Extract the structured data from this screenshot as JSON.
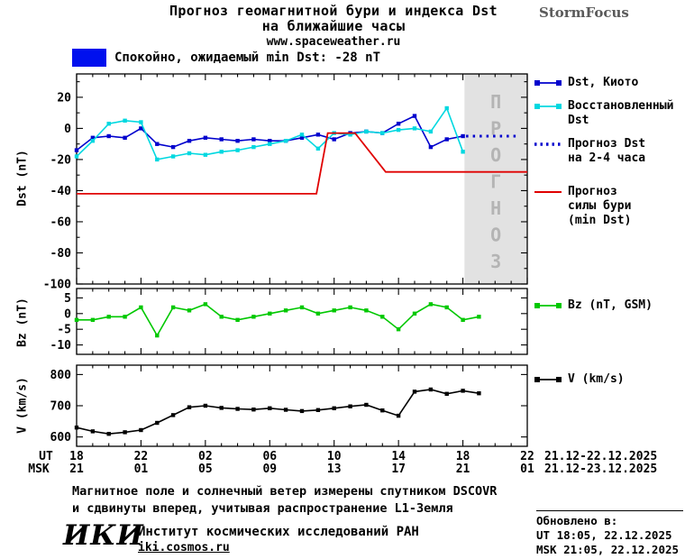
{
  "header": {
    "title_line1": "Прогноз геомагнитной бури и индекса Dst",
    "title_line2": "на ближайшие часы",
    "site": "www.spaceweather.ru",
    "brand": "StormFocus",
    "status": "Спокойно, ожидаемый min Dst: -28 nT"
  },
  "palette": {
    "kyoto": "#0000cd",
    "restored": "#00d8e0",
    "storm": "#e00000",
    "bz": "#00c800",
    "v": "#000000",
    "quiet": "#0010ee",
    "band": "#e2e2e2",
    "band_text": "#b4b4b4"
  },
  "chart_data": {
    "type": "line",
    "x_unit": "hours from 18:00 UT 21.12.2025 to 22:00 UT 22.12.2025, ticks every 4 h",
    "panels": [
      {
        "key": "dst",
        "ylabel": "Dst (nT)",
        "xlim": [
          0,
          28
        ],
        "ylim": [
          -100,
          35
        ],
        "yticks": [
          20,
          0,
          -20,
          -40,
          -60,
          -80,
          -100
        ],
        "yminor_step": 10,
        "forecast_band": {
          "from": 24.1,
          "to": 28,
          "label": "ПРОГНОЗ"
        },
        "series": [
          {
            "key": "dst_kyoto",
            "name": "Dst, Киото",
            "color": "kyoto",
            "markers": true,
            "start": 0,
            "step": 1,
            "values": [
              -14,
              -6,
              -5,
              -6,
              0,
              -10,
              -12,
              -8,
              -6,
              -7,
              -8,
              -7,
              -8,
              -8,
              -6,
              -4,
              -7,
              -3,
              -2,
              -3,
              3,
              8,
              -12,
              -7,
              -5
            ]
          },
          {
            "key": "dst_restored",
            "name": "Восстановленный Dst",
            "color": "restored",
            "markers": true,
            "start": 0,
            "step": 1,
            "values": [
              -18,
              -8,
              3,
              5,
              4,
              -20,
              -18,
              -16,
              -17,
              -15,
              -14,
              -12,
              -10,
              -8,
              -4,
              -13,
              -3,
              -4,
              -2,
              -3,
              -1,
              0,
              -2,
              13,
              -15
            ]
          },
          {
            "key": "dst_forecast",
            "name": "Прогноз Dst на 2-4 часа",
            "color": "kyoto",
            "dash": "2.5 5",
            "width": 3,
            "points": [
              [
                24.2,
                -5
              ],
              [
                27.4,
                -5
              ]
            ]
          },
          {
            "key": "storm_forecast",
            "name": "Прогноз силы бури (min Dst)",
            "color": "storm",
            "width": 1.8,
            "points": [
              [
                0,
                -42
              ],
              [
                14.9,
                -42
              ],
              [
                15.6,
                -3
              ],
              [
                17.3,
                -3
              ],
              [
                19.2,
                -28
              ],
              [
                28,
                -28
              ]
            ]
          }
        ]
      },
      {
        "key": "bz",
        "ylabel": "Bz (nT)",
        "xlim": [
          0,
          28
        ],
        "ylim": [
          -13,
          8
        ],
        "yticks": [
          5,
          0,
          -5,
          -10
        ],
        "series": [
          {
            "key": "bz",
            "name": "Bz (nT, GSM)",
            "color": "bz",
            "markers": true,
            "start": 0,
            "step": 1,
            "values": [
              -2,
              -2,
              -1,
              -1,
              2,
              -7,
              2,
              1,
              3,
              -1,
              -2,
              -1,
              0,
              1,
              2,
              0,
              1,
              2,
              1,
              -1,
              -5,
              0,
              3,
              2,
              -2,
              -1
            ]
          }
        ]
      },
      {
        "key": "v",
        "ylabel": "V (km/s)",
        "xlim": [
          0,
          28
        ],
        "ylim": [
          570,
          830
        ],
        "yticks": [
          800,
          700,
          600
        ],
        "series": [
          {
            "key": "v",
            "name": "V (km/s)",
            "color": "v",
            "markers": true,
            "start": 0,
            "step": 1,
            "values": [
              630,
              618,
              610,
              615,
              622,
              645,
              670,
              695,
              700,
              693,
              690,
              688,
              692,
              687,
              683,
              686,
              692,
              698,
              703,
              685,
              668,
              745,
              752,
              738,
              748,
              740
            ]
          }
        ]
      }
    ]
  },
  "xaxis": {
    "ut_label": "UT",
    "msk_label": "MSK",
    "hours_ut": [
      "18",
      "22",
      "02",
      "06",
      "10",
      "14",
      "18",
      "22"
    ],
    "hours_msk": [
      "21",
      "01",
      "05",
      "09",
      "13",
      "17",
      "21",
      "01"
    ],
    "date_range_ut": "21.12-22.12.2025",
    "date_range_msk": "21.12-23.12.2025"
  },
  "legend": {
    "items": [
      {
        "key": "dst_kyoto",
        "label": "Dst, Киото",
        "type": "squares",
        "color": "kyoto"
      },
      {
        "key": "dst_restored",
        "label": "Восстановленный\nDst",
        "type": "squares",
        "color": "restored"
      },
      {
        "key": "dst_forecast",
        "label": "Прогноз Dst\nна 2-4 часа",
        "type": "dotted",
        "color": "kyoto"
      },
      {
        "key": "storm_forecast",
        "label": "Прогноз\nсилы бури\n(min Dst)",
        "type": "line",
        "color": "storm"
      },
      {
        "key": "bz",
        "label": "Bz (nT, GSM)",
        "type": "squares",
        "color": "bz"
      },
      {
        "key": "v",
        "label": "V (km/s)",
        "type": "squares",
        "color": "v"
      }
    ]
  },
  "footer": {
    "note_line1": "Магнитное поле и солнечный ветер измерены спутником DSCOVR",
    "note_line2": "и сдвинуты вперед, учитывая распространение L1-Земля",
    "updated_label": "Обновлено в:",
    "updated_ut": "UT  18:05, 22.12.2025",
    "updated_msk": "MSK 21:05, 22.12.2025",
    "logo": "ИКИ",
    "institute": "Институт космических исследований РАН",
    "site": "iki.cosmos.ru"
  }
}
